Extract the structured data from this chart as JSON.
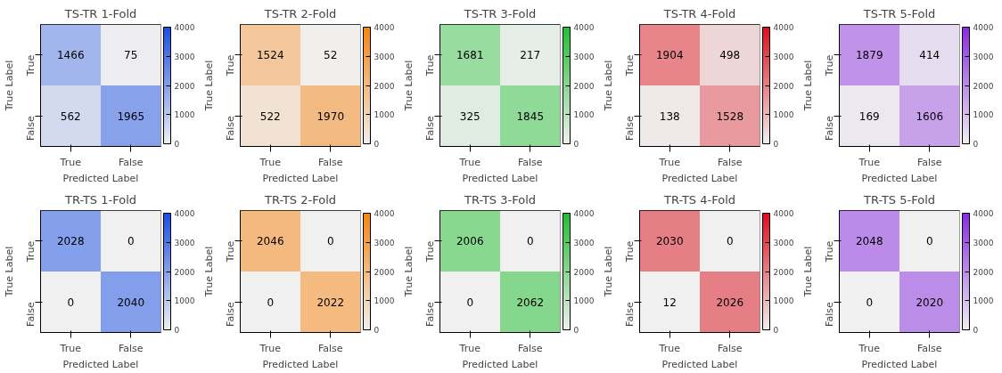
{
  "chart_data": [
    {
      "type": "heatmap",
      "title": "TS-TR 1-Fold",
      "xlabel": "Predicted Label",
      "ylabel": "True Label",
      "categories": [
        "True",
        "False"
      ],
      "y_categories": [
        "True",
        "False"
      ],
      "cells": [
        [
          1466,
          75
        ],
        [
          562,
          1965
        ]
      ],
      "clim": [
        0,
        4000
      ],
      "cticks": [
        0,
        1000,
        2000,
        3000,
        4000
      ],
      "colors": [
        "#f0f0f0",
        "#1a4fe6"
      ],
      "data_labels": true
    },
    {
      "type": "heatmap",
      "title": "TS-TR 2-Fold",
      "xlabel": "Predicted Label",
      "ylabel": "True Label",
      "categories": [
        "True",
        "False"
      ],
      "y_categories": [
        "True",
        "False"
      ],
      "cells": [
        [
          1524,
          52
        ],
        [
          522,
          1970
        ]
      ],
      "clim": [
        0,
        4000
      ],
      "cticks": [
        0,
        1000,
        2000,
        3000,
        4000
      ],
      "colors": [
        "#f0f0f0",
        "#f78510"
      ],
      "data_labels": true
    },
    {
      "type": "heatmap",
      "title": "TS-TR 3-Fold",
      "xlabel": "Predicted Label",
      "ylabel": "True Label",
      "categories": [
        "True",
        "False"
      ],
      "y_categories": [
        "True",
        "False"
      ],
      "cells": [
        [
          1681,
          217
        ],
        [
          325,
          1845
        ]
      ],
      "clim": [
        0,
        4000
      ],
      "cticks": [
        0,
        1000,
        2000,
        3000,
        4000
      ],
      "colors": [
        "#f0f0f0",
        "#20c030"
      ],
      "data_labels": true
    },
    {
      "type": "heatmap",
      "title": "TS-TR 4-Fold",
      "xlabel": "Predicted Label",
      "ylabel": "True Label",
      "categories": [
        "True",
        "False"
      ],
      "y_categories": [
        "True",
        "False"
      ],
      "cells": [
        [
          1904,
          498
        ],
        [
          138,
          1528
        ]
      ],
      "clim": [
        0,
        4000
      ],
      "cticks": [
        0,
        1000,
        2000,
        3000,
        4000
      ],
      "colors": [
        "#f0f0f0",
        "#dc0f1c"
      ],
      "data_labels": true
    },
    {
      "type": "heatmap",
      "title": "TS-TR 5-Fold",
      "xlabel": "Predicted Label",
      "ylabel": "True Label",
      "categories": [
        "True",
        "False"
      ],
      "y_categories": [
        "True",
        "False"
      ],
      "cells": [
        [
          1879,
          414
        ],
        [
          169,
          1606
        ]
      ],
      "clim": [
        0,
        4000
      ],
      "cticks": [
        0,
        1000,
        2000,
        3000,
        4000
      ],
      "colors": [
        "#f0f0f0",
        "#8a2be2"
      ],
      "data_labels": true
    },
    {
      "type": "heatmap",
      "title": "TR-TS 1-Fold",
      "xlabel": "Predicted Label",
      "ylabel": "True Label",
      "categories": [
        "True",
        "False"
      ],
      "y_categories": [
        "True",
        "False"
      ],
      "cells": [
        [
          2028,
          0
        ],
        [
          0,
          2040
        ]
      ],
      "clim": [
        0,
        4000
      ],
      "cticks": [
        0,
        1000,
        2000,
        3000,
        4000
      ],
      "colors": [
        "#f0f0f0",
        "#1a4fe6"
      ],
      "data_labels": true
    },
    {
      "type": "heatmap",
      "title": "TR-TS 2-Fold",
      "xlabel": "Predicted Label",
      "ylabel": "True Label",
      "categories": [
        "True",
        "False"
      ],
      "y_categories": [
        "True",
        "False"
      ],
      "cells": [
        [
          2046,
          0
        ],
        [
          0,
          2022
        ]
      ],
      "clim": [
        0,
        4000
      ],
      "cticks": [
        0,
        1000,
        2000,
        3000,
        4000
      ],
      "colors": [
        "#f0f0f0",
        "#f78510"
      ],
      "data_labels": true
    },
    {
      "type": "heatmap",
      "title": "TR-TS 3-Fold",
      "xlabel": "Predicted Label",
      "ylabel": "True Label",
      "categories": [
        "True",
        "False"
      ],
      "y_categories": [
        "True",
        "False"
      ],
      "cells": [
        [
          2006,
          0
        ],
        [
          0,
          2062
        ]
      ],
      "clim": [
        0,
        4000
      ],
      "cticks": [
        0,
        1000,
        2000,
        3000,
        4000
      ],
      "colors": [
        "#f0f0f0",
        "#20c030"
      ],
      "data_labels": true
    },
    {
      "type": "heatmap",
      "title": "TR-TS 4-Fold",
      "xlabel": "Predicted Label",
      "ylabel": "True Label",
      "categories": [
        "True",
        "False"
      ],
      "y_categories": [
        "True",
        "False"
      ],
      "cells": [
        [
          2030,
          0
        ],
        [
          12,
          2026
        ]
      ],
      "clim": [
        0,
        4000
      ],
      "cticks": [
        0,
        1000,
        2000,
        3000,
        4000
      ],
      "colors": [
        "#f0f0f0",
        "#dc0f1c"
      ],
      "data_labels": true
    },
    {
      "type": "heatmap",
      "title": "TR-TS 5-Fold",
      "xlabel": "Predicted Label",
      "ylabel": "True Label",
      "categories": [
        "True",
        "False"
      ],
      "y_categories": [
        "True",
        "False"
      ],
      "cells": [
        [
          2048,
          0
        ],
        [
          0,
          2020
        ]
      ],
      "clim": [
        0,
        4000
      ],
      "cticks": [
        0,
        1000,
        2000,
        3000,
        4000
      ],
      "colors": [
        "#f0f0f0",
        "#8a2be2"
      ],
      "data_labels": true
    }
  ]
}
